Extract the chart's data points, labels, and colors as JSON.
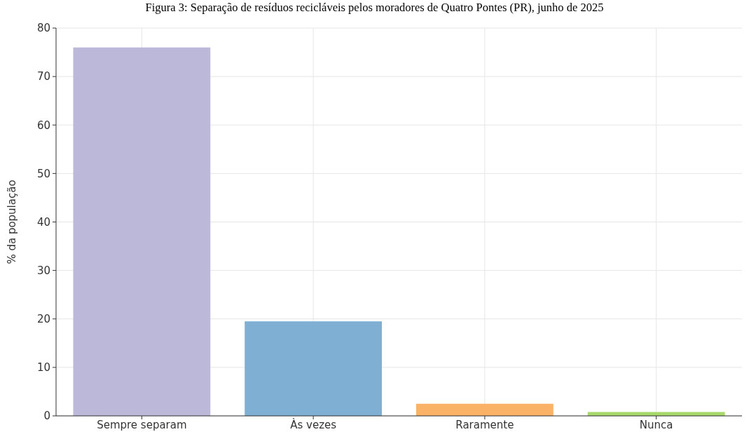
{
  "chart_data": {
    "type": "bar",
    "title": "Figura 3: Separação de resíduos recicláveis pelos moradores de Quatro Pontes (PR), junho de 2025",
    "ylabel": "% da população",
    "categories": [
      "Sempre separam",
      "Às vezes",
      "Raramente",
      "Nunca"
    ],
    "values": [
      76,
      19.5,
      2.5,
      0.8
    ],
    "colors": [
      "#bcb8da",
      "#7fb0d3",
      "#f9b266",
      "#a6d96a"
    ],
    "ylim": [
      0,
      80
    ],
    "yticks": [
      0,
      10,
      20,
      30,
      40,
      50,
      60,
      70,
      80
    ],
    "grid": true
  }
}
